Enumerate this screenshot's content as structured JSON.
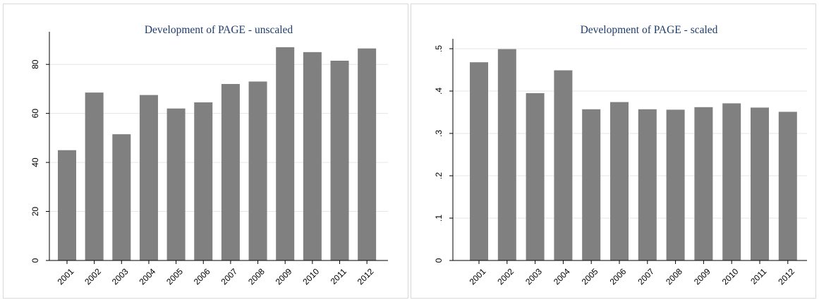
{
  "chart_data": [
    {
      "type": "bar",
      "title": "Development of PAGE - unscaled",
      "xlabel": "",
      "ylabel": "",
      "categories": [
        "2001",
        "2002",
        "2003",
        "2004",
        "2005",
        "2006",
        "2007",
        "2008",
        "2009",
        "2010",
        "2011",
        "2012"
      ],
      "values": [
        45,
        68.5,
        51.5,
        67.5,
        62,
        64.5,
        72,
        73,
        87,
        85,
        81.5,
        86.5
      ],
      "ylim": [
        0,
        91
      ],
      "yticks": [
        0,
        20,
        40,
        60,
        80
      ],
      "ytick_labels": [
        "0",
        "20",
        "40",
        "60",
        "80"
      ],
      "grid": true,
      "bar_color": "#808080"
    },
    {
      "type": "bar",
      "title": "Development of PAGE - scaled",
      "xlabel": "",
      "ylabel": "",
      "categories": [
        "2001",
        "2002",
        "2003",
        "2004",
        "2005",
        "2006",
        "2007",
        "2008",
        "2009",
        "2010",
        "2011",
        "2012"
      ],
      "values": [
        0.468,
        0.499,
        0.395,
        0.449,
        0.357,
        0.374,
        0.357,
        0.356,
        0.362,
        0.371,
        0.361,
        0.351
      ],
      "ylim": [
        0,
        0.51
      ],
      "yticks": [
        0,
        0.1,
        0.2,
        0.3,
        0.4,
        0.5
      ],
      "ytick_labels": [
        "0",
        ".1",
        ".2",
        ".3",
        ".4",
        ".5"
      ],
      "grid": true,
      "bar_color": "#808080"
    }
  ]
}
